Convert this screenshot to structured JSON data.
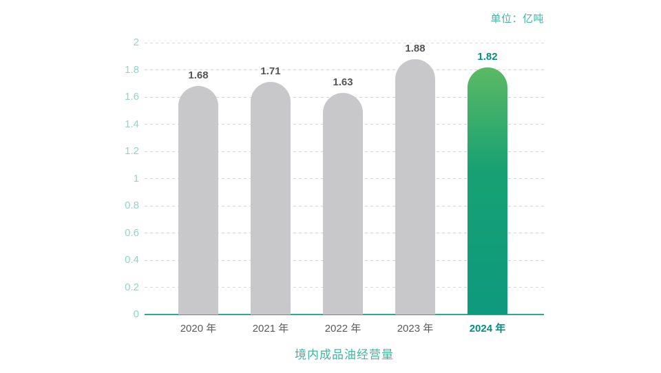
{
  "unit_label": "单位：亿吨",
  "footer_title": "境内成品油经营量",
  "colors": {
    "axis_tick_label": "#8ed5c8",
    "gridline": "#d9d9d9",
    "baseline": "#2aa89a",
    "bar_gray": "#c8c8ca",
    "bar_green_top": "#5bb964",
    "bar_green_mid": "#17a173",
    "bar_green_bottom": "#0d9a7e",
    "value_label": "#535456",
    "value_label_highlight": "#00917e",
    "x_label": "#58595b",
    "x_label_highlight": "#00917e",
    "title_green": "#3eb6a0"
  },
  "chart_data": {
    "type": "bar",
    "title": "境内成品油经营量",
    "unit": "单位：亿吨",
    "categories": [
      "2020 年",
      "2021 年",
      "2022 年",
      "2023 年",
      "2024 年"
    ],
    "values": [
      1.68,
      1.71,
      1.63,
      1.88,
      1.82
    ],
    "value_labels": [
      "1.68",
      "1.71",
      "1.63",
      "1.88",
      "1.82"
    ],
    "highlight_index": 4,
    "xlabel": "",
    "ylabel": "",
    "ylim": [
      0,
      2
    ],
    "ytick_step": 0.2,
    "yticks": [
      "0",
      "0.2",
      "0.4",
      "0.6",
      "0.8",
      "1",
      "1.2",
      "1.4",
      "1.6",
      "1.8",
      "2"
    ],
    "grid": true,
    "grid_style": "dashed",
    "legend": false
  }
}
